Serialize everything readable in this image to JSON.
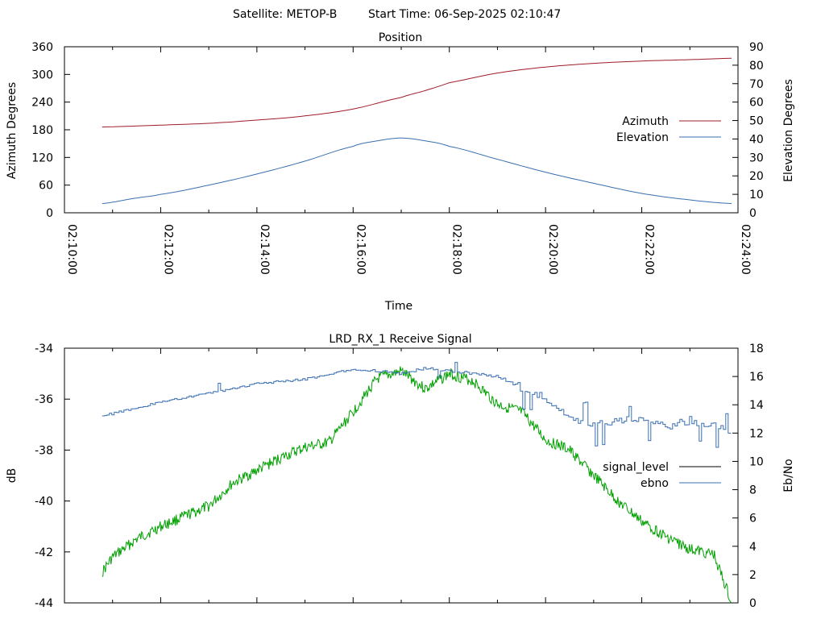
{
  "header": {
    "satellite": "Satellite: METOP-B",
    "start_time": "Start Time: 06-Sep-2025 02:10:47"
  },
  "colors": {
    "azimuth": "#a01c2a",
    "elevation": "#3a6fb0",
    "signal_level": "#000000",
    "ebno": "#3a6fb0",
    "signal_trace": "#00a000"
  },
  "chart_data": [
    {
      "type": "line",
      "title": "Position",
      "xlabel": "Time",
      "ylabel": "Azimuth Degrees",
      "y2label": "Elevation Degrees",
      "xlim": [
        "02:10:00",
        "02:24:00"
      ],
      "ylim": [
        0,
        360
      ],
      "y2lim": [
        0,
        90
      ],
      "x_ticks": [
        "02:10:00",
        "02:12:00",
        "02:14:00",
        "02:16:00",
        "02:18:00",
        "02:20:00",
        "02:22:00",
        "02:24:00"
      ],
      "y_ticks": [
        "0",
        "60",
        "120",
        "180",
        "240",
        "300",
        "360"
      ],
      "y2_ticks": [
        "0",
        "10",
        "20",
        "30",
        "40",
        "50",
        "60",
        "70",
        "80",
        "90"
      ],
      "legend_position": "right",
      "series": [
        {
          "name": "Azimuth",
          "axis": "y",
          "x": [
            "02:10:47",
            "02:12:00",
            "02:13:00",
            "02:14:00",
            "02:15:00",
            "02:16:00",
            "02:17:00",
            "02:17:30",
            "02:18:00",
            "02:19:00",
            "02:20:00",
            "02:21:00",
            "02:22:00",
            "02:23:00",
            "02:23:52"
          ],
          "values": [
            186,
            190,
            194,
            201,
            210,
            225,
            250,
            265,
            282,
            303,
            316,
            324,
            329,
            332,
            335
          ]
        },
        {
          "name": "Elevation",
          "axis": "y2",
          "x": [
            "02:10:47",
            "02:11:30",
            "02:12:00",
            "02:13:00",
            "02:14:00",
            "02:15:00",
            "02:16:00",
            "02:16:30",
            "02:17:00",
            "02:17:30",
            "02:18:00",
            "02:19:00",
            "02:20:00",
            "02:21:00",
            "02:22:00",
            "02:23:00",
            "02:23:52"
          ],
          "values": [
            5,
            8,
            10,
            15,
            21,
            28,
            36,
            39,
            40.5,
            39,
            36,
            29,
            22,
            16,
            10.5,
            7,
            5
          ]
        }
      ]
    },
    {
      "type": "line",
      "title": "LRD_RX_1 Receive Signal",
      "ylabel": "dB",
      "y2label": "Eb/No",
      "ylim": [
        -44,
        -34
      ],
      "y2lim": [
        0,
        18
      ],
      "y_ticks": [
        "-34",
        "-36",
        "-38",
        "-40",
        "-42",
        "-44"
      ],
      "y2_ticks": [
        "0",
        "2",
        "4",
        "6",
        "8",
        "10",
        "12",
        "14",
        "16",
        "18"
      ],
      "legend_position": "right",
      "legend": [
        "signal_level",
        "ebno"
      ],
      "series": [
        {
          "name": "signal_level",
          "axis": "y",
          "x": [
            "02:10:47",
            "02:11:00",
            "02:11:30",
            "02:12:00",
            "02:12:30",
            "02:13:00",
            "02:13:30",
            "02:14:00",
            "02:14:30",
            "02:15:00",
            "02:15:30",
            "02:16:00",
            "02:16:30",
            "02:17:00",
            "02:17:30",
            "02:18:00",
            "02:18:30",
            "02:19:00",
            "02:19:30",
            "02:20:00",
            "02:20:30",
            "02:21:00",
            "02:21:30",
            "02:22:00",
            "02:22:30",
            "02:23:00",
            "02:23:30",
            "02:23:52"
          ],
          "values": [
            -42.8,
            -42.2,
            -41.5,
            -41.0,
            -40.6,
            -40.2,
            -39.3,
            -38.8,
            -38.3,
            -37.9,
            -37.7,
            -36.5,
            -35.2,
            -34.9,
            -35.6,
            -35.0,
            -35.3,
            -36.2,
            -36.5,
            -37.6,
            -38.0,
            -39.0,
            -40.0,
            -40.8,
            -41.4,
            -41.9,
            -42.1,
            -44.0
          ]
        },
        {
          "name": "ebno",
          "axis": "y2",
          "x": [
            "02:10:47",
            "02:11:30",
            "02:12:00",
            "02:13:00",
            "02:14:00",
            "02:15:00",
            "02:15:30",
            "02:16:00",
            "02:16:30",
            "02:17:00",
            "02:17:30",
            "02:18:00",
            "02:19:00",
            "02:19:30",
            "02:20:00",
            "02:20:30",
            "02:21:00",
            "02:21:30",
            "02:22:00",
            "02:22:30",
            "02:23:00",
            "02:23:52"
          ],
          "values": [
            13.2,
            13.8,
            14.2,
            14.8,
            15.5,
            15.8,
            16.2,
            16.5,
            16.4,
            16.2,
            16.6,
            16.4,
            16.0,
            15.2,
            14.5,
            13.0,
            12.5,
            13.0,
            12.8,
            12.5,
            12.9,
            12.2
          ]
        }
      ]
    }
  ]
}
